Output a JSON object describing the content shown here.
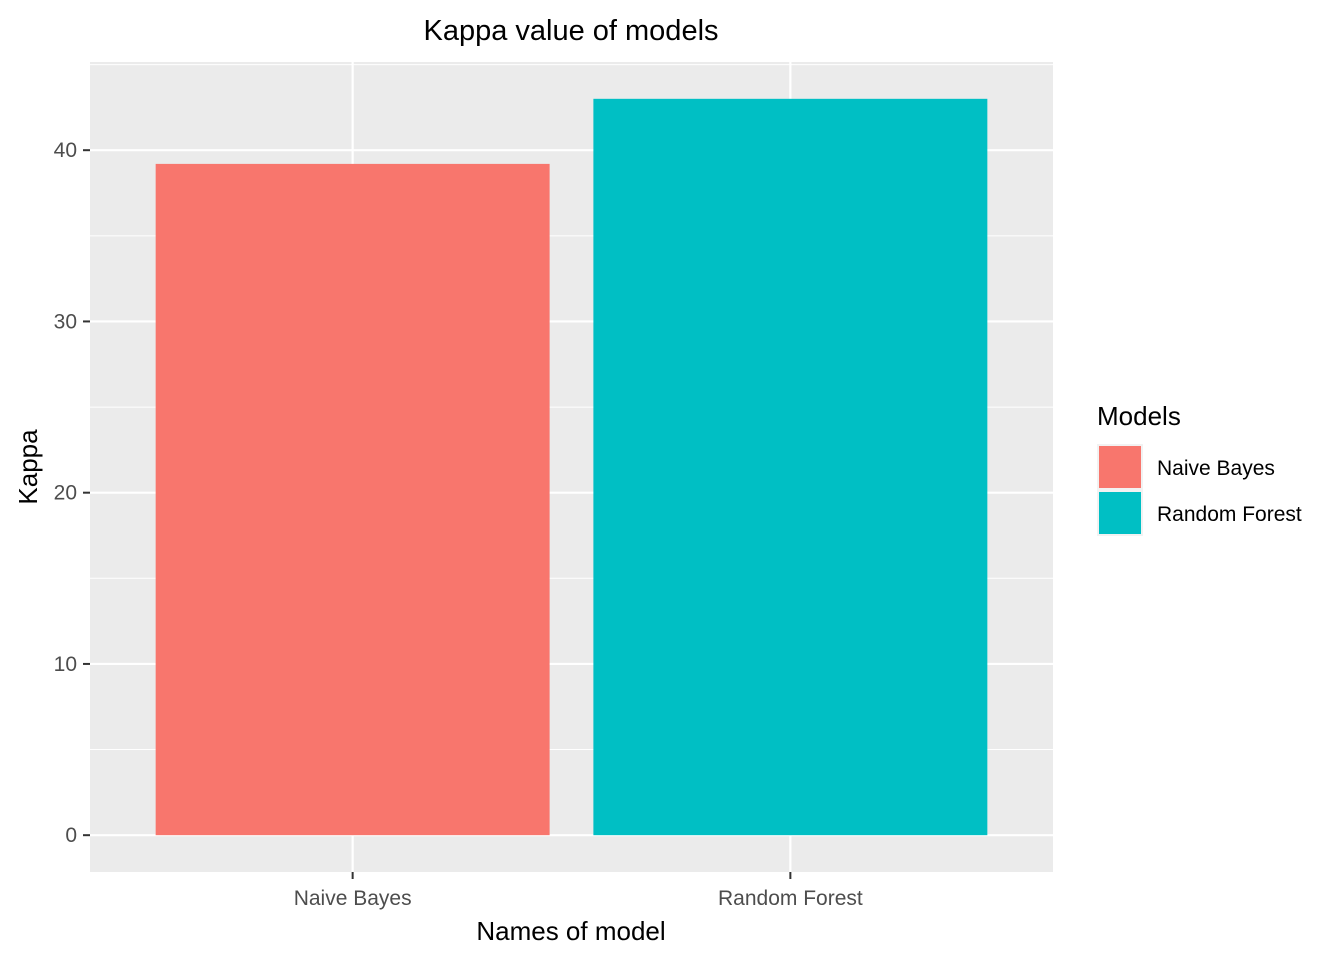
{
  "chart_data": {
    "type": "bar",
    "title": "Kappa value of models",
    "xlabel": "Names of model",
    "ylabel": "Kappa",
    "categories": [
      "Naive Bayes",
      "Random Forest"
    ],
    "values": [
      39.2,
      43.0
    ],
    "colors": [
      "#F8766D",
      "#00BFC4"
    ],
    "ylim": [
      -2.15,
      45.15
    ],
    "yticks": [
      0,
      10,
      20,
      30,
      40
    ],
    "ytick_labels": [
      "0",
      "10",
      "20",
      "30",
      "40"
    ],
    "grid": true,
    "panel_background": "#EBEBEB",
    "grid_color": "#FFFFFF",
    "legend": {
      "title": "Models",
      "placement": "right",
      "entries": [
        "Naive Bayes",
        "Random Forest"
      ]
    }
  }
}
